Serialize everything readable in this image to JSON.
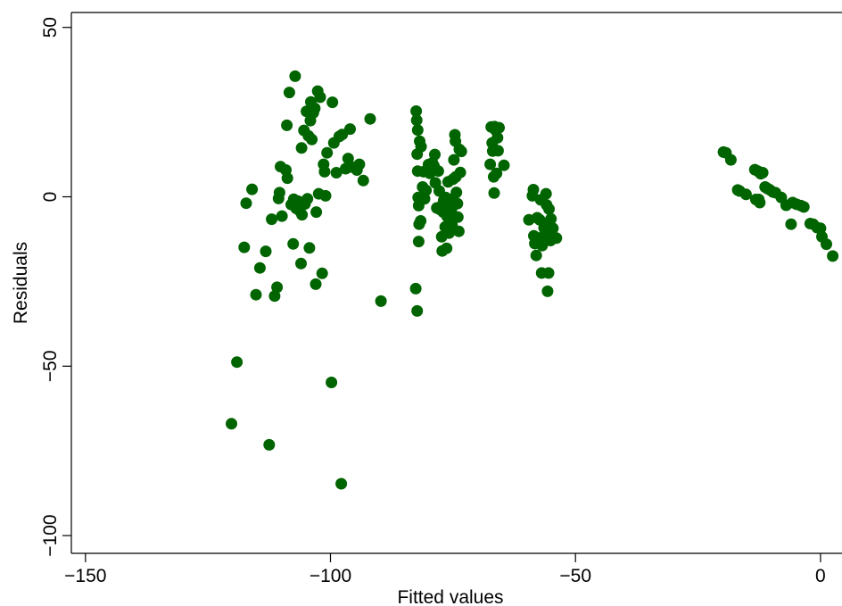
{
  "chart_data": {
    "type": "scatter",
    "xlabel": "Fitted values",
    "ylabel": "Residuals",
    "xlim": [
      -152,
      3
    ],
    "ylim": [
      -107,
      55
    ],
    "xticks": [
      -150,
      -100,
      -50,
      0
    ],
    "yticks": [
      50,
      0,
      -50,
      -100
    ],
    "xtick_labels": [
      "−150",
      "−100",
      "−50",
      "0"
    ],
    "ytick_labels": [
      "50",
      "0",
      "−50",
      "−100"
    ],
    "grid": false,
    "point_color": "#006400",
    "points": [
      [
        -120.2,
        -67.0
      ],
      [
        -119.1,
        -48.8
      ],
      [
        -117.6,
        -14.9
      ],
      [
        -117.2,
        -1.9
      ],
      [
        -116.0,
        2.2
      ],
      [
        -115.2,
        -28.9
      ],
      [
        -114.4,
        -21.0
      ],
      [
        -113.2,
        -16.1
      ],
      [
        -112.5,
        -73.2
      ],
      [
        -112.0,
        -6.6
      ],
      [
        -111.4,
        -29.3
      ],
      [
        -110.9,
        -26.7
      ],
      [
        -110.6,
        -0.5
      ],
      [
        -110.4,
        1.2
      ],
      [
        -110.2,
        8.9
      ],
      [
        -109.9,
        -5.7
      ],
      [
        -109.1,
        7.9
      ],
      [
        -108.8,
        5.5
      ],
      [
        -108.9,
        21.1
      ],
      [
        -108.4,
        30.8
      ],
      [
        -108.0,
        -2.3
      ],
      [
        -107.6,
        -13.9
      ],
      [
        -107.5,
        -0.7
      ],
      [
        -107.2,
        35.6
      ],
      [
        -107.0,
        -3.4
      ],
      [
        -106.6,
        -1.3
      ],
      [
        -106.3,
        -4.1
      ],
      [
        -106.0,
        -19.7
      ],
      [
        -105.9,
        14.4
      ],
      [
        -105.8,
        -5.3
      ],
      [
        -105.4,
        19.6
      ],
      [
        -105.2,
        -2.1
      ],
      [
        -104.9,
        25.2
      ],
      [
        -104.7,
        -0.6
      ],
      [
        -104.5,
        18.0
      ],
      [
        -104.3,
        -15.1
      ],
      [
        -104.1,
        22.5
      ],
      [
        -104.0,
        28.0
      ],
      [
        -103.8,
        16.9
      ],
      [
        -103.5,
        24.8
      ],
      [
        -103.2,
        26.1
      ],
      [
        -103.0,
        -25.8
      ],
      [
        -102.9,
        -4.5
      ],
      [
        -102.6,
        31.2
      ],
      [
        -102.4,
        0.9
      ],
      [
        -102.1,
        29.4
      ],
      [
        -101.7,
        -22.6
      ],
      [
        -101.4,
        9.6
      ],
      [
        -101.2,
        7.4
      ],
      [
        -101.0,
        0.3
      ],
      [
        -100.7,
        13.0
      ],
      [
        -99.8,
        -54.8
      ],
      [
        -99.6,
        27.9
      ],
      [
        -99.3,
        15.9
      ],
      [
        -98.8,
        7.1
      ],
      [
        -98.2,
        17.8
      ],
      [
        -97.8,
        -84.7
      ],
      [
        -97.6,
        18.4
      ],
      [
        -96.9,
        8.3
      ],
      [
        -96.4,
        11.3
      ],
      [
        -96.0,
        20.0
      ],
      [
        -95.7,
        8.8
      ],
      [
        -94.6,
        7.9
      ],
      [
        -94.1,
        9.6
      ],
      [
        -93.3,
        4.8
      ],
      [
        -91.9,
        23.0
      ],
      [
        -89.7,
        -30.8
      ],
      [
        -82.6,
        -27.1
      ],
      [
        -82.5,
        25.3
      ],
      [
        -82.4,
        22.6
      ],
      [
        -82.3,
        12.6
      ],
      [
        -82.3,
        -33.7
      ],
      [
        -82.2,
        19.7
      ],
      [
        -82.2,
        7.6
      ],
      [
        -82.1,
        -0.2
      ],
      [
        -82.0,
        -2.6
      ],
      [
        -82.0,
        -13.2
      ],
      [
        -81.9,
        -8.1
      ],
      [
        -81.8,
        16.4
      ],
      [
        -81.6,
        -7.1
      ],
      [
        -81.5,
        14.8
      ],
      [
        -81.2,
        2.9
      ],
      [
        -81.0,
        7.4
      ],
      [
        -80.8,
        -0.6
      ],
      [
        -80.5,
        1.9
      ],
      [
        -80.3,
        7.7
      ],
      [
        -80.0,
        9.5
      ],
      [
        -79.7,
        6.9
      ],
      [
        -79.5,
        8.5
      ],
      [
        -79.2,
        10.0
      ],
      [
        -78.9,
        9.2
      ],
      [
        -78.7,
        12.5
      ],
      [
        -78.6,
        4.1
      ],
      [
        -78.3,
        -3.3
      ],
      [
        -78.0,
        7.6
      ],
      [
        -77.8,
        1.7
      ],
      [
        -77.7,
        -3.7
      ],
      [
        -77.5,
        -2.9
      ],
      [
        -77.3,
        -11.8
      ],
      [
        -77.2,
        -16.0
      ],
      [
        -77.0,
        -4.5
      ],
      [
        -76.9,
        -1.1
      ],
      [
        -76.7,
        -3.8
      ],
      [
        -76.6,
        -8.9
      ],
      [
        -76.5,
        -0.2
      ],
      [
        -76.3,
        -15.2
      ],
      [
        -76.2,
        -5.8
      ],
      [
        -76.0,
        4.4
      ],
      [
        -75.9,
        -1.6
      ],
      [
        -75.8,
        -10.7
      ],
      [
        -75.7,
        -5.2
      ],
      [
        -75.6,
        -1.0
      ],
      [
        -75.4,
        -9.9
      ],
      [
        -75.3,
        -3.6
      ],
      [
        -75.2,
        -8.4
      ],
      [
        -75.1,
        -0.6
      ],
      [
        -75.0,
        5.2
      ],
      [
        -74.8,
        10.9
      ],
      [
        -74.6,
        18.3
      ],
      [
        -74.5,
        16.4
      ],
      [
        -74.4,
        5.9
      ],
      [
        -74.3,
        1.3
      ],
      [
        -74.1,
        -2.0
      ],
      [
        -74.0,
        -6.0
      ],
      [
        -73.8,
        -10.2
      ],
      [
        -73.7,
        14.0
      ],
      [
        -73.5,
        7.2
      ],
      [
        -73.3,
        13.4
      ],
      [
        -67.4,
        9.6
      ],
      [
        -67.2,
        20.6
      ],
      [
        -67.0,
        15.9
      ],
      [
        -66.9,
        13.5
      ],
      [
        -66.7,
        5.9
      ],
      [
        -66.6,
        1.1
      ],
      [
        -66.5,
        20.7
      ],
      [
        -66.3,
        19.7
      ],
      [
        -66.1,
        6.9
      ],
      [
        -65.9,
        17.4
      ],
      [
        -65.8,
        13.6
      ],
      [
        -65.6,
        20.4
      ],
      [
        -64.6,
        9.3
      ],
      [
        -59.5,
        -6.8
      ],
      [
        -58.8,
        0.3
      ],
      [
        -58.6,
        2.1
      ],
      [
        -58.5,
        -11.5
      ],
      [
        -58.3,
        -13.8
      ],
      [
        -58.0,
        -17.3
      ],
      [
        -57.8,
        -6.2
      ],
      [
        -57.6,
        -12.4
      ],
      [
        -57.3,
        -6.8
      ],
      [
        -57.1,
        -0.9
      ],
      [
        -56.9,
        -22.5
      ],
      [
        -56.8,
        -14.4
      ],
      [
        -56.6,
        -11.7
      ],
      [
        -56.4,
        -9.2
      ],
      [
        -56.2,
        -8.6
      ],
      [
        -56.0,
        0.9
      ],
      [
        -55.9,
        -2.4
      ],
      [
        -55.8,
        -12.2
      ],
      [
        -55.7,
        -27.9
      ],
      [
        -55.5,
        -22.5
      ],
      [
        -55.4,
        -3.6
      ],
      [
        -55.2,
        -10.2
      ],
      [
        -55.1,
        -12.9
      ],
      [
        -55.0,
        -6.5
      ],
      [
        -54.8,
        -11.9
      ],
      [
        -54.6,
        -9.3
      ],
      [
        -53.9,
        -12.2
      ],
      [
        -19.8,
        13.2
      ],
      [
        -19.3,
        13.0
      ],
      [
        -18.3,
        10.9
      ],
      [
        -16.9,
        2.0
      ],
      [
        -16.5,
        1.7
      ],
      [
        -15.2,
        0.7
      ],
      [
        -13.4,
        8.0
      ],
      [
        -13.2,
        -0.8
      ],
      [
        -12.8,
        7.6
      ],
      [
        -12.6,
        -0.8
      ],
      [
        -12.4,
        -1.7
      ],
      [
        -12.2,
        6.8
      ],
      [
        -11.8,
        7.1
      ],
      [
        -11.3,
        2.9
      ],
      [
        -10.9,
        2.5
      ],
      [
        -10.4,
        2.1
      ],
      [
        -9.7,
        1.4
      ],
      [
        -9.2,
        1.2
      ],
      [
        -8.0,
        -0.2
      ],
      [
        -7.0,
        -2.5
      ],
      [
        -6.0,
        -8.1
      ],
      [
        -5.7,
        -1.7
      ],
      [
        -4.9,
        -2.2
      ],
      [
        -4.0,
        -2.6
      ],
      [
        -3.4,
        -3.0
      ],
      [
        -2.1,
        -7.9
      ],
      [
        -1.5,
        -8.1
      ],
      [
        -0.7,
        -9.1
      ],
      [
        0.0,
        -9.3
      ],
      [
        0.3,
        -11.8
      ],
      [
        1.2,
        -14.0
      ],
      [
        2.5,
        -17.5
      ]
    ]
  }
}
